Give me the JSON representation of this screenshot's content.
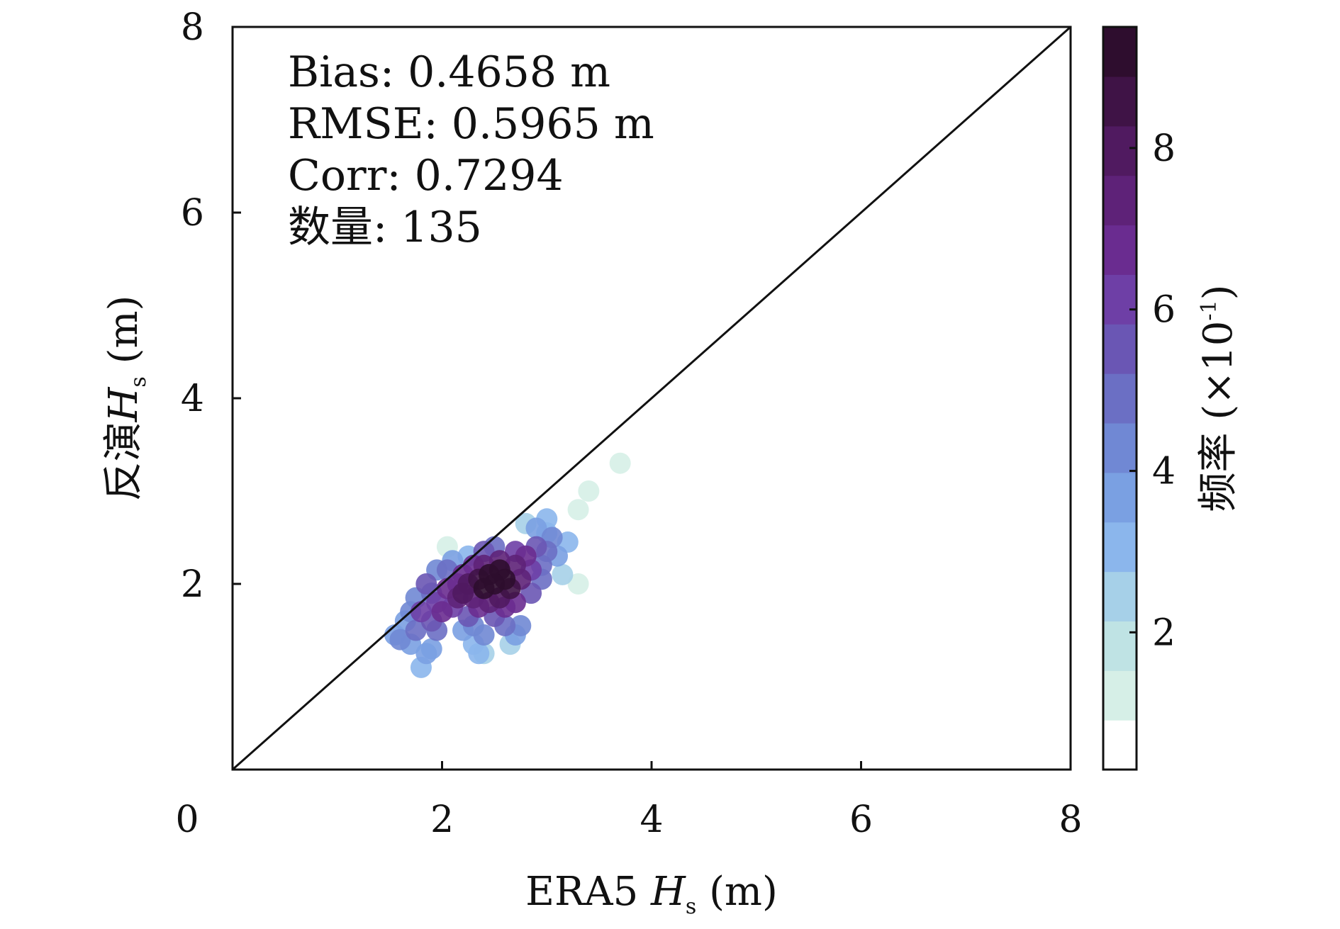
{
  "chart_data": {
    "type": "scatter",
    "xlabel": {
      "prefix": "ERA5 ",
      "symbol": "H",
      "subscript": "s",
      "unit": " (m)"
    },
    "ylabel": {
      "prefix": "反演",
      "symbol": "H",
      "subscript": "s",
      "unit": " (m)"
    },
    "xlim": [
      0,
      8
    ],
    "ylim": [
      0,
      8
    ],
    "x_ticks": [
      0,
      2,
      4,
      6,
      8
    ],
    "y_ticks": [
      2,
      4,
      6,
      8
    ],
    "reference_line": {
      "type": "identity",
      "from": [
        0,
        0
      ],
      "to": [
        8,
        8
      ]
    },
    "stats": [
      "Bias: 0.4658 m",
      "RMSE: 0.5965 m",
      "Corr: 0.7294",
      "数量: 135"
    ],
    "colorbar": {
      "label": "频率",
      "scale_label": {
        "prefix": " (×10",
        "exponent": "-1",
        "suffix": ")"
      },
      "range": [
        0.3,
        9.5
      ],
      "ticks": [
        2,
        4,
        6,
        8
      ],
      "colors": [
        "#ffffff",
        "#d6efe7",
        "#bfe3e4",
        "#a6d0e8",
        "#8bb6ec",
        "#7aa0e2",
        "#7088d4",
        "#6b6fc4",
        "#6a56b4",
        "#6e3fa6",
        "#6a2c90",
        "#5e2278",
        "#501a60",
        "#3f1346",
        "#2e0d2e"
      ]
    },
    "points": [
      {
        "x": 1.9,
        "y": 1.3,
        "f": 3.8
      },
      {
        "x": 1.7,
        "y": 1.35,
        "f": 3.5
      },
      {
        "x": 1.8,
        "y": 1.1,
        "f": 3.3
      },
      {
        "x": 1.85,
        "y": 1.25,
        "f": 3.6
      },
      {
        "x": 1.55,
        "y": 1.45,
        "f": 3.4
      },
      {
        "x": 1.65,
        "y": 1.6,
        "f": 3.7
      },
      {
        "x": 1.6,
        "y": 1.4,
        "f": 4.1
      },
      {
        "x": 1.95,
        "y": 1.5,
        "f": 4.6
      },
      {
        "x": 1.9,
        "y": 1.6,
        "f": 5.5
      },
      {
        "x": 1.8,
        "y": 1.7,
        "f": 6.0
      },
      {
        "x": 1.75,
        "y": 1.85,
        "f": 4.2
      },
      {
        "x": 1.95,
        "y": 1.8,
        "f": 6.2
      },
      {
        "x": 2.0,
        "y": 1.7,
        "f": 6.8
      },
      {
        "x": 2.05,
        "y": 1.95,
        "f": 7.0
      },
      {
        "x": 2.1,
        "y": 1.75,
        "f": 6.4
      },
      {
        "x": 2.15,
        "y": 1.85,
        "f": 7.2
      },
      {
        "x": 2.2,
        "y": 1.9,
        "f": 7.8
      },
      {
        "x": 2.25,
        "y": 2.0,
        "f": 8.2
      },
      {
        "x": 2.3,
        "y": 1.85,
        "f": 7.6
      },
      {
        "x": 2.35,
        "y": 2.05,
        "f": 8.8
      },
      {
        "x": 2.4,
        "y": 1.95,
        "f": 9.0
      },
      {
        "x": 2.45,
        "y": 2.1,
        "f": 9.2
      },
      {
        "x": 2.5,
        "y": 2.0,
        "f": 9.3
      },
      {
        "x": 2.55,
        "y": 2.15,
        "f": 9.1
      },
      {
        "x": 2.6,
        "y": 2.05,
        "f": 9.2
      },
      {
        "x": 2.65,
        "y": 1.95,
        "f": 8.4
      },
      {
        "x": 2.55,
        "y": 2.25,
        "f": 7.4
      },
      {
        "x": 2.4,
        "y": 2.2,
        "f": 7.2
      },
      {
        "x": 2.3,
        "y": 2.2,
        "f": 6.5
      },
      {
        "x": 2.2,
        "y": 2.1,
        "f": 6.8
      },
      {
        "x": 2.7,
        "y": 2.2,
        "f": 7.5
      },
      {
        "x": 2.75,
        "y": 2.05,
        "f": 7.2
      },
      {
        "x": 2.8,
        "y": 2.3,
        "f": 6.8
      },
      {
        "x": 2.85,
        "y": 2.15,
        "f": 6.2
      },
      {
        "x": 2.7,
        "y": 1.8,
        "f": 7.0
      },
      {
        "x": 2.6,
        "y": 1.75,
        "f": 6.6
      },
      {
        "x": 2.55,
        "y": 1.85,
        "f": 8.0
      },
      {
        "x": 2.45,
        "y": 1.8,
        "f": 7.4
      },
      {
        "x": 2.35,
        "y": 1.75,
        "f": 6.8
      },
      {
        "x": 2.25,
        "y": 1.65,
        "f": 5.8
      },
      {
        "x": 2.5,
        "y": 1.65,
        "f": 5.4
      },
      {
        "x": 2.6,
        "y": 1.55,
        "f": 4.8
      },
      {
        "x": 2.7,
        "y": 1.45,
        "f": 3.6
      },
      {
        "x": 2.4,
        "y": 1.45,
        "f": 4.0
      },
      {
        "x": 2.3,
        "y": 1.55,
        "f": 4.2
      },
      {
        "x": 2.3,
        "y": 1.35,
        "f": 3.2
      },
      {
        "x": 2.35,
        "y": 1.25,
        "f": 2.8
      },
      {
        "x": 2.4,
        "y": 1.25,
        "f": 2.6
      },
      {
        "x": 2.2,
        "y": 1.5,
        "f": 3.8
      },
      {
        "x": 2.9,
        "y": 2.4,
        "f": 5.8
      },
      {
        "x": 2.95,
        "y": 2.2,
        "f": 5.0
      },
      {
        "x": 3.0,
        "y": 2.35,
        "f": 4.6
      },
      {
        "x": 3.05,
        "y": 2.5,
        "f": 4.2
      },
      {
        "x": 3.1,
        "y": 2.3,
        "f": 3.8
      },
      {
        "x": 2.9,
        "y": 2.6,
        "f": 3.5
      },
      {
        "x": 3.0,
        "y": 2.7,
        "f": 3.0
      },
      {
        "x": 3.0,
        "y": 2.55,
        "f": 3.3
      },
      {
        "x": 3.2,
        "y": 2.45,
        "f": 3.1
      },
      {
        "x": 2.8,
        "y": 2.65,
        "f": 2.6
      },
      {
        "x": 2.05,
        "y": 2.15,
        "f": 4.8
      },
      {
        "x": 1.95,
        "y": 2.15,
        "f": 4.0
      },
      {
        "x": 2.1,
        "y": 2.25,
        "f": 3.6
      },
      {
        "x": 1.85,
        "y": 2.0,
        "f": 5.5
      },
      {
        "x": 2.15,
        "y": 2.0,
        "f": 6.5
      },
      {
        "x": 1.9,
        "y": 1.9,
        "f": 5.0
      },
      {
        "x": 2.7,
        "y": 2.35,
        "f": 6.0
      },
      {
        "x": 2.4,
        "y": 2.35,
        "f": 5.4
      },
      {
        "x": 2.5,
        "y": 2.4,
        "f": 4.6
      },
      {
        "x": 2.75,
        "y": 1.55,
        "f": 4.0
      },
      {
        "x": 2.85,
        "y": 1.9,
        "f": 5.6
      },
      {
        "x": 2.95,
        "y": 2.05,
        "f": 5.2
      },
      {
        "x": 2.25,
        "y": 2.3,
        "f": 3.2
      },
      {
        "x": 2.65,
        "y": 1.35,
        "f": 2.2
      },
      {
        "x": 3.15,
        "y": 2.1,
        "f": 2.4
      },
      {
        "x": 3.3,
        "y": 2.0,
        "f": 1.0
      },
      {
        "x": 3.05,
        "y": 1.6,
        "f": 0.9
      },
      {
        "x": 2.95,
        "y": 1.45,
        "f": 0.8
      },
      {
        "x": 3.2,
        "y": 1.45,
        "f": 0.6
      },
      {
        "x": 3.5,
        "y": 2.0,
        "f": 0.8
      },
      {
        "x": 3.25,
        "y": 1.75,
        "f": 0.6
      },
      {
        "x": 3.4,
        "y": 3.0,
        "f": 1.4
      },
      {
        "x": 3.7,
        "y": 3.3,
        "f": 1.2
      },
      {
        "x": 3.85,
        "y": 3.5,
        "f": 0.8
      },
      {
        "x": 3.55,
        "y": 3.2,
        "f": 0.9
      },
      {
        "x": 3.3,
        "y": 2.8,
        "f": 1.0
      },
      {
        "x": 2.15,
        "y": 2.5,
        "f": 0.7
      },
      {
        "x": 2.4,
        "y": 2.55,
        "f": 0.9
      },
      {
        "x": 2.65,
        "y": 2.75,
        "f": 0.8
      },
      {
        "x": 2.85,
        "y": 2.95,
        "f": 0.6
      },
      {
        "x": 2.05,
        "y": 2.4,
        "f": 1.0
      },
      {
        "x": 1.75,
        "y": 1.5,
        "f": 5.0
      },
      {
        "x": 1.7,
        "y": 1.7,
        "f": 4.4
      }
    ]
  }
}
